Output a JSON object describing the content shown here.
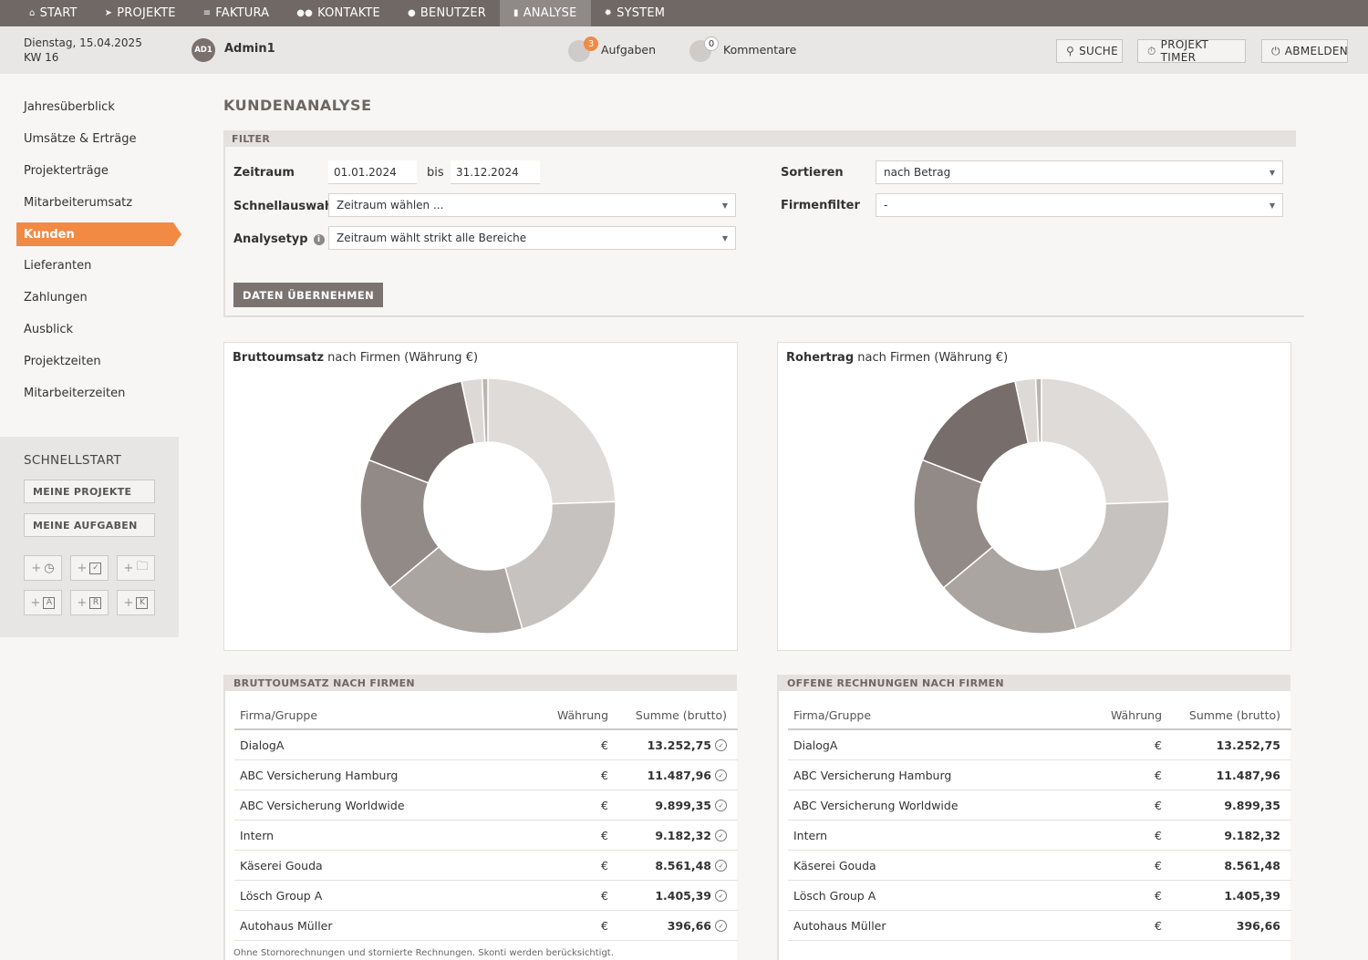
{
  "nav": [
    {
      "label": "START",
      "icon": "home-icon"
    },
    {
      "label": "PROJEKTE",
      "icon": "rocket-icon"
    },
    {
      "label": "FAKTURA",
      "icon": "invoice-icon"
    },
    {
      "label": "KONTAKTE",
      "icon": "contacts-icon"
    },
    {
      "label": "BENUTZER",
      "icon": "user-icon"
    },
    {
      "label": "ANALYSE",
      "icon": "chart-icon",
      "active": true
    },
    {
      "label": "SYSTEM",
      "icon": "gear-icon"
    }
  ],
  "header": {
    "date": "Dienstag, 15.04.2025",
    "week": "KW 16",
    "avatar": "AD1",
    "username": "Admin1",
    "tasks_count": "3",
    "tasks_label": "Aufgaben",
    "comments_count": "0",
    "comments_label": "Kommentare",
    "search_label": "SUCHE",
    "timer_label": "PROJEKT TIMER",
    "logout_label": "ABMELDEN"
  },
  "sidebar": {
    "items": [
      "Jahresüberblick",
      "Umsätze & Erträge",
      "Projekterträge",
      "Mitarbeiterumsatz",
      "Kunden",
      "Lieferanten",
      "Zahlungen",
      "Ausblick",
      "Projektzeiten",
      "Mitarbeiterzeiten"
    ],
    "active": "Kunden",
    "quickstart_title": "SCHNELLSTART",
    "quick_buttons": [
      "MEINE PROJEKTE",
      "MEINE AUFGABEN"
    ],
    "quick_icons": [
      "add-time-icon",
      "add-task-icon",
      "add-folder-icon",
      "add-a-icon",
      "add-r-icon",
      "add-k-icon"
    ],
    "quick_icon_letters": [
      "A",
      "R",
      "K"
    ]
  },
  "main": {
    "title": "KUNDENANALYSE",
    "filter": {
      "section": "FILTER",
      "zeitraum_label": "Zeitraum",
      "from": "01.01.2024",
      "bis_label": "bis",
      "to": "31.12.2024",
      "schnell_label": "Schnellauswahl",
      "schnell_value": "Zeitraum wählen ...",
      "analysetyp_label": "Analysetyp",
      "analysetyp_value": "Zeitraum wählt strikt alle Bereiche",
      "sort_label": "Sortieren",
      "sort_value": "nach Betrag",
      "firm_label": "Firmenfilter",
      "firm_value": "-",
      "apply": "DATEN ÜBERNEHMEN"
    },
    "chart1_title_bold": "Bruttoumsatz",
    "chart1_title_rest": " nach Firmen (Währung €)",
    "chart2_title_bold": "Rohertrag",
    "chart2_title_rest": " nach Firmen (Währung €)",
    "table1_title": "BRUTTOUMSATZ NACH FIRMEN",
    "table2_title": "OFFENE RECHNUNGEN NACH FIRMEN",
    "columns": [
      "Firma/Gruppe",
      "Währung",
      "Summe (brutto)"
    ],
    "rows": [
      {
        "firma": "DialogA",
        "waehrung": "€",
        "summe": "13.252,75"
      },
      {
        "firma": "ABC Versicherung Hamburg",
        "waehrung": "€",
        "summe": "11.487,96"
      },
      {
        "firma": "ABC Versicherung Worldwide",
        "waehrung": "€",
        "summe": "9.899,35"
      },
      {
        "firma": "Intern",
        "waehrung": "€",
        "summe": "9.182,32"
      },
      {
        "firma": "Käserei Gouda",
        "waehrung": "€",
        "summe": "8.561,48"
      },
      {
        "firma": "Lösch Group A",
        "waehrung": "€",
        "summe": "1.405,39"
      },
      {
        "firma": "Autohaus Müller",
        "waehrung": "€",
        "summe": "396,66"
      }
    ],
    "footnote": "Ohne Stornorechnungen und stornierte Rechnungen. Skonti werden berücksichtigt."
  },
  "chart_data": [
    {
      "type": "pie",
      "title": "Bruttoumsatz nach Firmen (Währung €)",
      "categories": [
        "DialogA",
        "ABC Versicherung Hamburg",
        "ABC Versicherung Worldwide",
        "Intern",
        "Käserei Gouda",
        "Lösch Group A",
        "Autohaus Müller"
      ],
      "values": [
        13252.75,
        11487.96,
        9899.35,
        9182.32,
        8561.48,
        1405.39,
        396.66
      ],
      "colors": [
        "#dedbd9",
        "#c6c2bf",
        "#aba5a2",
        "#928a87",
        "#776e6b",
        "#dcd9d7",
        "#bab5b2"
      ],
      "donut": true
    },
    {
      "type": "pie",
      "title": "Rohertrag nach Firmen (Währung €)",
      "categories": [
        "DialogA",
        "ABC Versicherung Hamburg",
        "ABC Versicherung Worldwide",
        "Intern",
        "Käserei Gouda",
        "Lösch Group A",
        "Autohaus Müller"
      ],
      "values": [
        13252.75,
        11487.96,
        9899.35,
        9182.32,
        8561.48,
        1405.39,
        396.66
      ],
      "colors": [
        "#dedbd9",
        "#c6c2bf",
        "#aba5a2",
        "#928a87",
        "#776e6b",
        "#dcd9d7",
        "#bab5b2"
      ],
      "donut": true
    }
  ]
}
